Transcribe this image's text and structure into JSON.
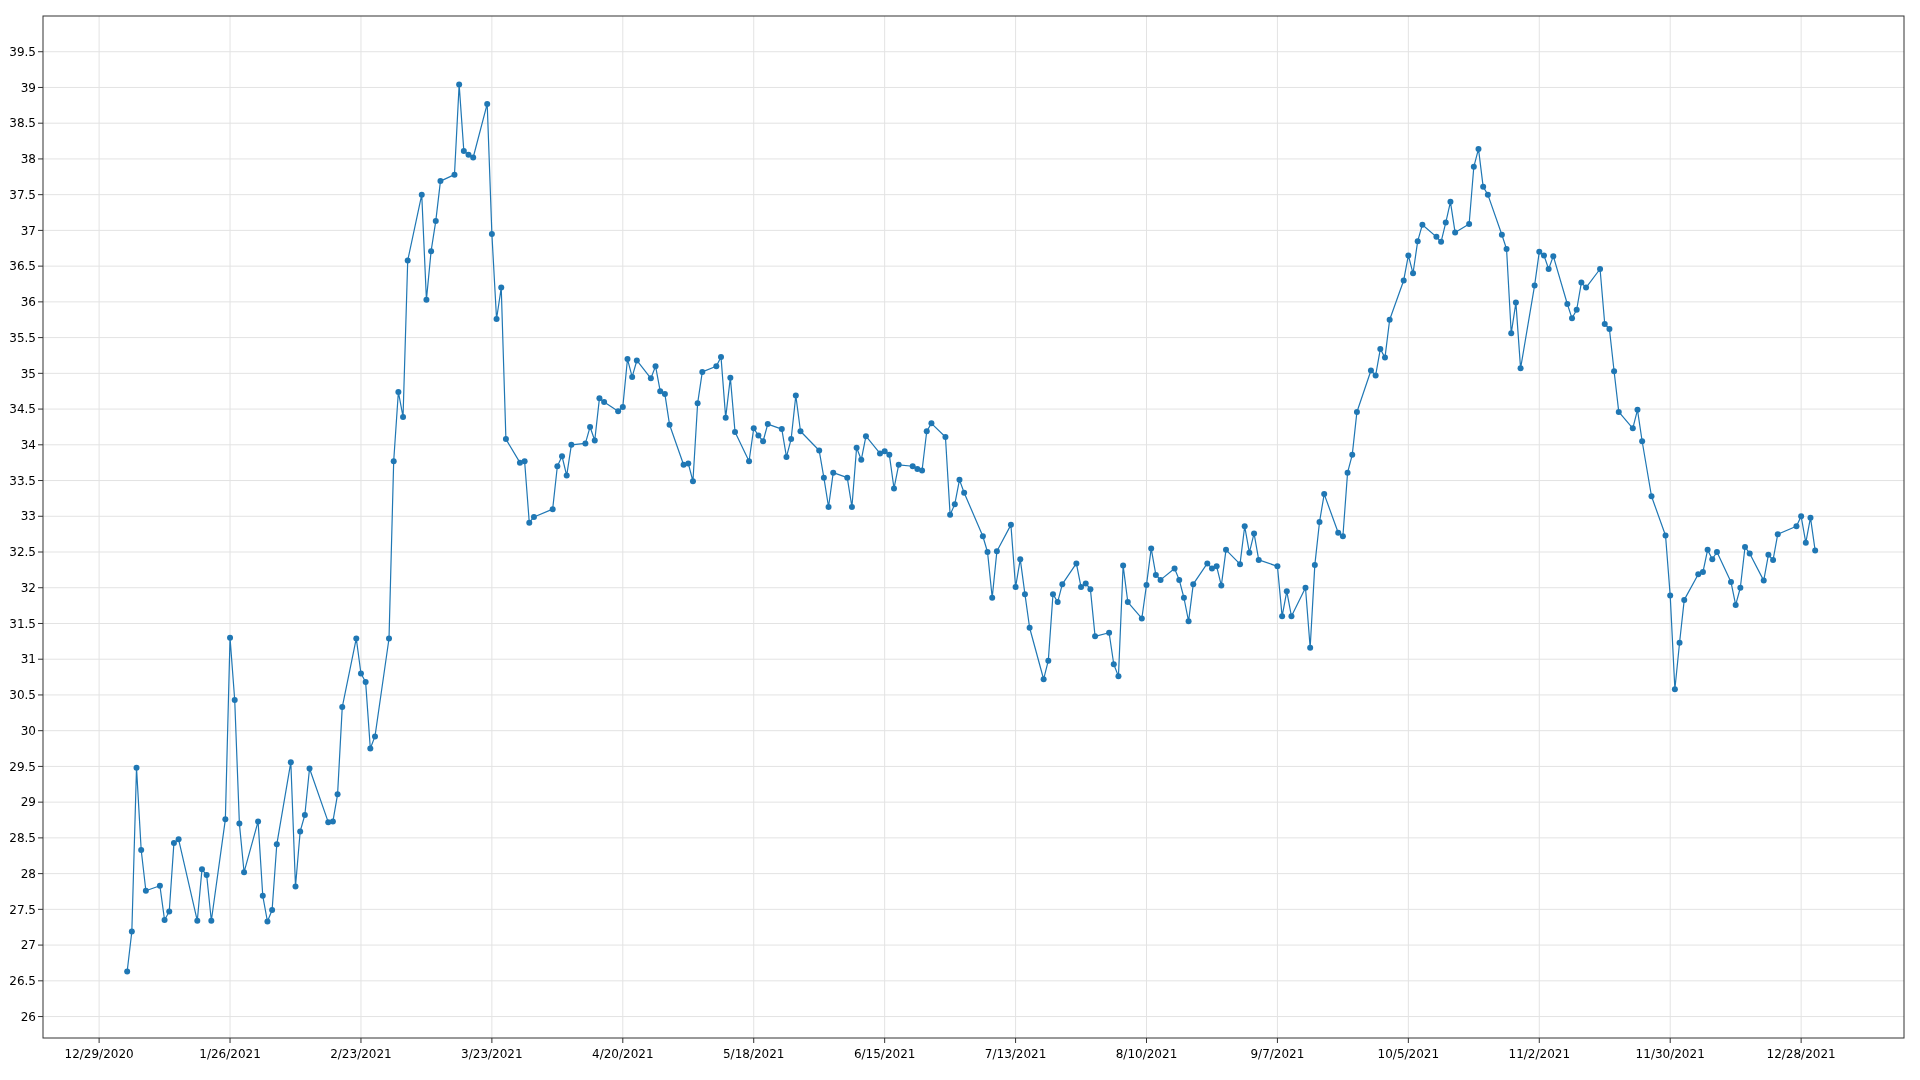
{
  "chart_data": {
    "type": "line",
    "marker": "circle",
    "grid": true,
    "xlim": [
      "2020-12-17",
      "2022-01-19"
    ],
    "ylim": [
      25.7,
      40
    ],
    "xticks": [
      {
        "value": "2020-12-29",
        "label": "12/29/2020"
      },
      {
        "value": "2021-01-26",
        "label": "1/26/2021"
      },
      {
        "value": "2021-02-23",
        "label": "2/23/2021"
      },
      {
        "value": "2021-03-23",
        "label": "3/23/2021"
      },
      {
        "value": "2021-04-20",
        "label": "4/20/2021"
      },
      {
        "value": "2021-05-18",
        "label": "5/18/2021"
      },
      {
        "value": "2021-06-15",
        "label": "6/15/2021"
      },
      {
        "value": "2021-07-13",
        "label": "7/13/2021"
      },
      {
        "value": "2021-08-10",
        "label": "8/10/2021"
      },
      {
        "value": "2021-09-07",
        "label": "9/7/2021"
      },
      {
        "value": "2021-10-05",
        "label": "10/5/2021"
      },
      {
        "value": "2021-11-02",
        "label": "11/2/2021"
      },
      {
        "value": "2021-11-30",
        "label": "11/30/2021"
      },
      {
        "value": "2021-12-28",
        "label": "12/28/2021"
      }
    ],
    "yticks": [
      26,
      26.5,
      27,
      27.5,
      28,
      28.5,
      29,
      29.5,
      30,
      30.5,
      31,
      31.5,
      32,
      32.5,
      33,
      33.5,
      34,
      34.5,
      35,
      35.5,
      36,
      36.5,
      37,
      37.5,
      38,
      38.5,
      39,
      39.5
    ],
    "x": [
      "2021-01-04",
      "2021-01-05",
      "2021-01-06",
      "2021-01-07",
      "2021-01-08",
      "2021-01-11",
      "2021-01-12",
      "2021-01-13",
      "2021-01-14",
      "2021-01-15",
      "2021-01-19",
      "2021-01-20",
      "2021-01-21",
      "2021-01-22",
      "2021-01-25",
      "2021-01-26",
      "2021-01-27",
      "2021-01-28",
      "2021-01-29",
      "2021-02-01",
      "2021-02-02",
      "2021-02-03",
      "2021-02-04",
      "2021-02-05",
      "2021-02-08",
      "2021-02-09",
      "2021-02-10",
      "2021-02-11",
      "2021-02-12",
      "2021-02-16",
      "2021-02-17",
      "2021-02-18",
      "2021-02-19",
      "2021-02-22",
      "2021-02-23",
      "2021-02-24",
      "2021-02-25",
      "2021-02-26",
      "2021-03-01",
      "2021-03-02",
      "2021-03-03",
      "2021-03-04",
      "2021-03-05",
      "2021-03-08",
      "2021-03-09",
      "2021-03-10",
      "2021-03-11",
      "2021-03-12",
      "2021-03-15",
      "2021-03-16",
      "2021-03-17",
      "2021-03-18",
      "2021-03-19",
      "2021-03-22",
      "2021-03-23",
      "2021-03-24",
      "2021-03-25",
      "2021-03-26",
      "2021-03-29",
      "2021-03-30",
      "2021-03-31",
      "2021-04-01",
      "2021-04-05",
      "2021-04-06",
      "2021-04-07",
      "2021-04-08",
      "2021-04-09",
      "2021-04-12",
      "2021-04-13",
      "2021-04-14",
      "2021-04-15",
      "2021-04-16",
      "2021-04-19",
      "2021-04-20",
      "2021-04-21",
      "2021-04-22",
      "2021-04-23",
      "2021-04-26",
      "2021-04-27",
      "2021-04-28",
      "2021-04-29",
      "2021-04-30",
      "2021-05-03",
      "2021-05-04",
      "2021-05-05",
      "2021-05-06",
      "2021-05-07",
      "2021-05-10",
      "2021-05-11",
      "2021-05-12",
      "2021-05-13",
      "2021-05-14",
      "2021-05-17",
      "2021-05-18",
      "2021-05-19",
      "2021-05-20",
      "2021-05-21",
      "2021-05-24",
      "2021-05-25",
      "2021-05-26",
      "2021-05-27",
      "2021-05-28",
      "2021-06-01",
      "2021-06-02",
      "2021-06-03",
      "2021-06-04",
      "2021-06-07",
      "2021-06-08",
      "2021-06-09",
      "2021-06-10",
      "2021-06-11",
      "2021-06-14",
      "2021-06-15",
      "2021-06-16",
      "2021-06-17",
      "2021-06-18",
      "2021-06-21",
      "2021-06-22",
      "2021-06-23",
      "2021-06-24",
      "2021-06-25",
      "2021-06-28",
      "2021-06-29",
      "2021-06-30",
      "2021-07-01",
      "2021-07-02",
      "2021-07-06",
      "2021-07-07",
      "2021-07-08",
      "2021-07-09",
      "2021-07-12",
      "2021-07-13",
      "2021-07-14",
      "2021-07-15",
      "2021-07-16",
      "2021-07-19",
      "2021-07-20",
      "2021-07-21",
      "2021-07-22",
      "2021-07-23",
      "2021-07-26",
      "2021-07-27",
      "2021-07-28",
      "2021-07-29",
      "2021-07-30",
      "2021-08-02",
      "2021-08-03",
      "2021-08-04",
      "2021-08-05",
      "2021-08-06",
      "2021-08-09",
      "2021-08-10",
      "2021-08-11",
      "2021-08-12",
      "2021-08-13",
      "2021-08-16",
      "2021-08-17",
      "2021-08-18",
      "2021-08-19",
      "2021-08-20",
      "2021-08-23",
      "2021-08-24",
      "2021-08-25",
      "2021-08-26",
      "2021-08-27",
      "2021-08-30",
      "2021-08-31",
      "2021-09-01",
      "2021-09-02",
      "2021-09-03",
      "2021-09-07",
      "2021-09-08",
      "2021-09-09",
      "2021-09-10",
      "2021-09-13",
      "2021-09-14",
      "2021-09-15",
      "2021-09-16",
      "2021-09-17",
      "2021-09-20",
      "2021-09-21",
      "2021-09-22",
      "2021-09-23",
      "2021-09-24",
      "2021-09-27",
      "2021-09-28",
      "2021-09-29",
      "2021-09-30",
      "2021-10-01",
      "2021-10-04",
      "2021-10-05",
      "2021-10-06",
      "2021-10-07",
      "2021-10-08",
      "2021-10-11",
      "2021-10-12",
      "2021-10-13",
      "2021-10-14",
      "2021-10-15",
      "2021-10-18",
      "2021-10-19",
      "2021-10-20",
      "2021-10-21",
      "2021-10-22",
      "2021-10-25",
      "2021-10-26",
      "2021-10-27",
      "2021-10-28",
      "2021-10-29",
      "2021-11-01",
      "2021-11-02",
      "2021-11-03",
      "2021-11-04",
      "2021-11-05",
      "2021-11-08",
      "2021-11-09",
      "2021-11-10",
      "2021-11-11",
      "2021-11-12",
      "2021-11-15",
      "2021-11-16",
      "2021-11-17",
      "2021-11-18",
      "2021-11-19",
      "2021-11-22",
      "2021-11-23",
      "2021-11-24",
      "2021-11-26",
      "2021-11-29",
      "2021-11-30",
      "2021-12-01",
      "2021-12-02",
      "2021-12-03",
      "2021-12-06",
      "2021-12-07",
      "2021-12-08",
      "2021-12-09",
      "2021-12-10",
      "2021-12-13",
      "2021-12-14",
      "2021-12-15",
      "2021-12-16",
      "2021-12-17",
      "2021-12-20",
      "2021-12-21",
      "2021-12-22",
      "2021-12-23",
      "2021-12-27",
      "2021-12-28",
      "2021-12-29",
      "2021-12-30",
      "2021-12-31"
    ],
    "series": [
      {
        "color": "#1f77b4",
        "values": [
          26.63,
          27.19,
          29.48,
          28.33,
          27.76,
          27.83,
          27.35,
          27.47,
          28.43,
          28.48,
          27.34,
          28.06,
          27.98,
          27.34,
          28.76,
          31.3,
          30.43,
          28.7,
          28.02,
          28.73,
          27.69,
          27.33,
          27.49,
          28.41,
          29.56,
          27.82,
          28.59,
          28.82,
          29.47,
          28.72,
          28.73,
          29.11,
          30.33,
          31.29,
          30.8,
          30.68,
          29.75,
          29.92,
          31.29,
          33.77,
          34.74,
          34.39,
          36.58,
          37.5,
          36.03,
          36.71,
          37.13,
          37.69,
          37.78,
          39.04,
          38.11,
          38.06,
          38.02,
          38.77,
          36.95,
          35.76,
          36.2,
          34.08,
          33.75,
          33.77,
          32.91,
          32.99,
          33.1,
          33.7,
          33.84,
          33.57,
          34.0,
          34.02,
          34.25,
          34.06,
          34.65,
          34.6,
          34.47,
          34.53,
          35.2,
          34.95,
          35.18,
          34.93,
          35.1,
          34.75,
          34.71,
          34.28,
          33.72,
          33.74,
          33.49,
          34.58,
          35.02,
          35.1,
          35.23,
          34.38,
          34.94,
          34.18,
          33.77,
          34.23,
          34.13,
          34.05,
          34.29,
          34.22,
          33.83,
          34.08,
          34.69,
          34.19,
          33.92,
          33.54,
          33.13,
          33.61,
          33.54,
          33.13,
          33.96,
          33.79,
          34.12,
          33.88,
          33.91,
          33.86,
          33.39,
          33.72,
          33.7,
          33.66,
          33.64,
          34.19,
          34.3,
          34.11,
          33.02,
          33.17,
          33.51,
          33.33,
          32.72,
          32.5,
          31.86,
          32.51,
          32.88,
          32.01,
          32.4,
          31.91,
          31.44,
          30.72,
          30.98,
          31.91,
          31.8,
          32.05,
          32.34,
          32.01,
          32.06,
          31.98,
          31.32,
          31.37,
          30.93,
          30.76,
          32.31,
          31.8,
          31.57,
          32.04,
          32.55,
          32.18,
          32.11,
          32.27,
          32.11,
          31.86,
          31.53,
          32.05,
          32.34,
          32.27,
          32.3,
          32.03,
          32.53,
          32.33,
          32.86,
          32.49,
          32.76,
          32.39,
          32.3,
          31.6,
          31.95,
          31.6,
          32.0,
          31.16,
          32.32,
          32.92,
          33.31,
          32.77,
          32.72,
          33.61,
          33.86,
          34.46,
          35.04,
          34.97,
          35.34,
          35.22,
          35.75,
          36.3,
          36.65,
          36.4,
          36.85,
          37.08,
          36.91,
          36.84,
          37.11,
          37.4,
          36.97,
          37.09,
          37.89,
          38.14,
          37.61,
          37.5,
          36.94,
          36.74,
          35.56,
          35.99,
          35.07,
          36.23,
          36.7,
          36.65,
          36.46,
          36.64,
          35.97,
          35.77,
          35.89,
          36.27,
          36.2,
          36.46,
          35.69,
          35.62,
          35.03,
          34.46,
          34.23,
          34.49,
          34.05,
          33.28,
          32.73,
          31.89,
          30.58,
          31.23,
          31.83,
          32.19,
          32.22,
          32.53,
          32.4,
          32.5,
          32.08,
          31.76,
          32.0,
          32.57,
          32.48,
          32.1,
          32.46,
          32.39,
          32.75,
          32.86,
          33.0,
          32.63,
          32.98,
          32.52
        ]
      }
    ]
  }
}
